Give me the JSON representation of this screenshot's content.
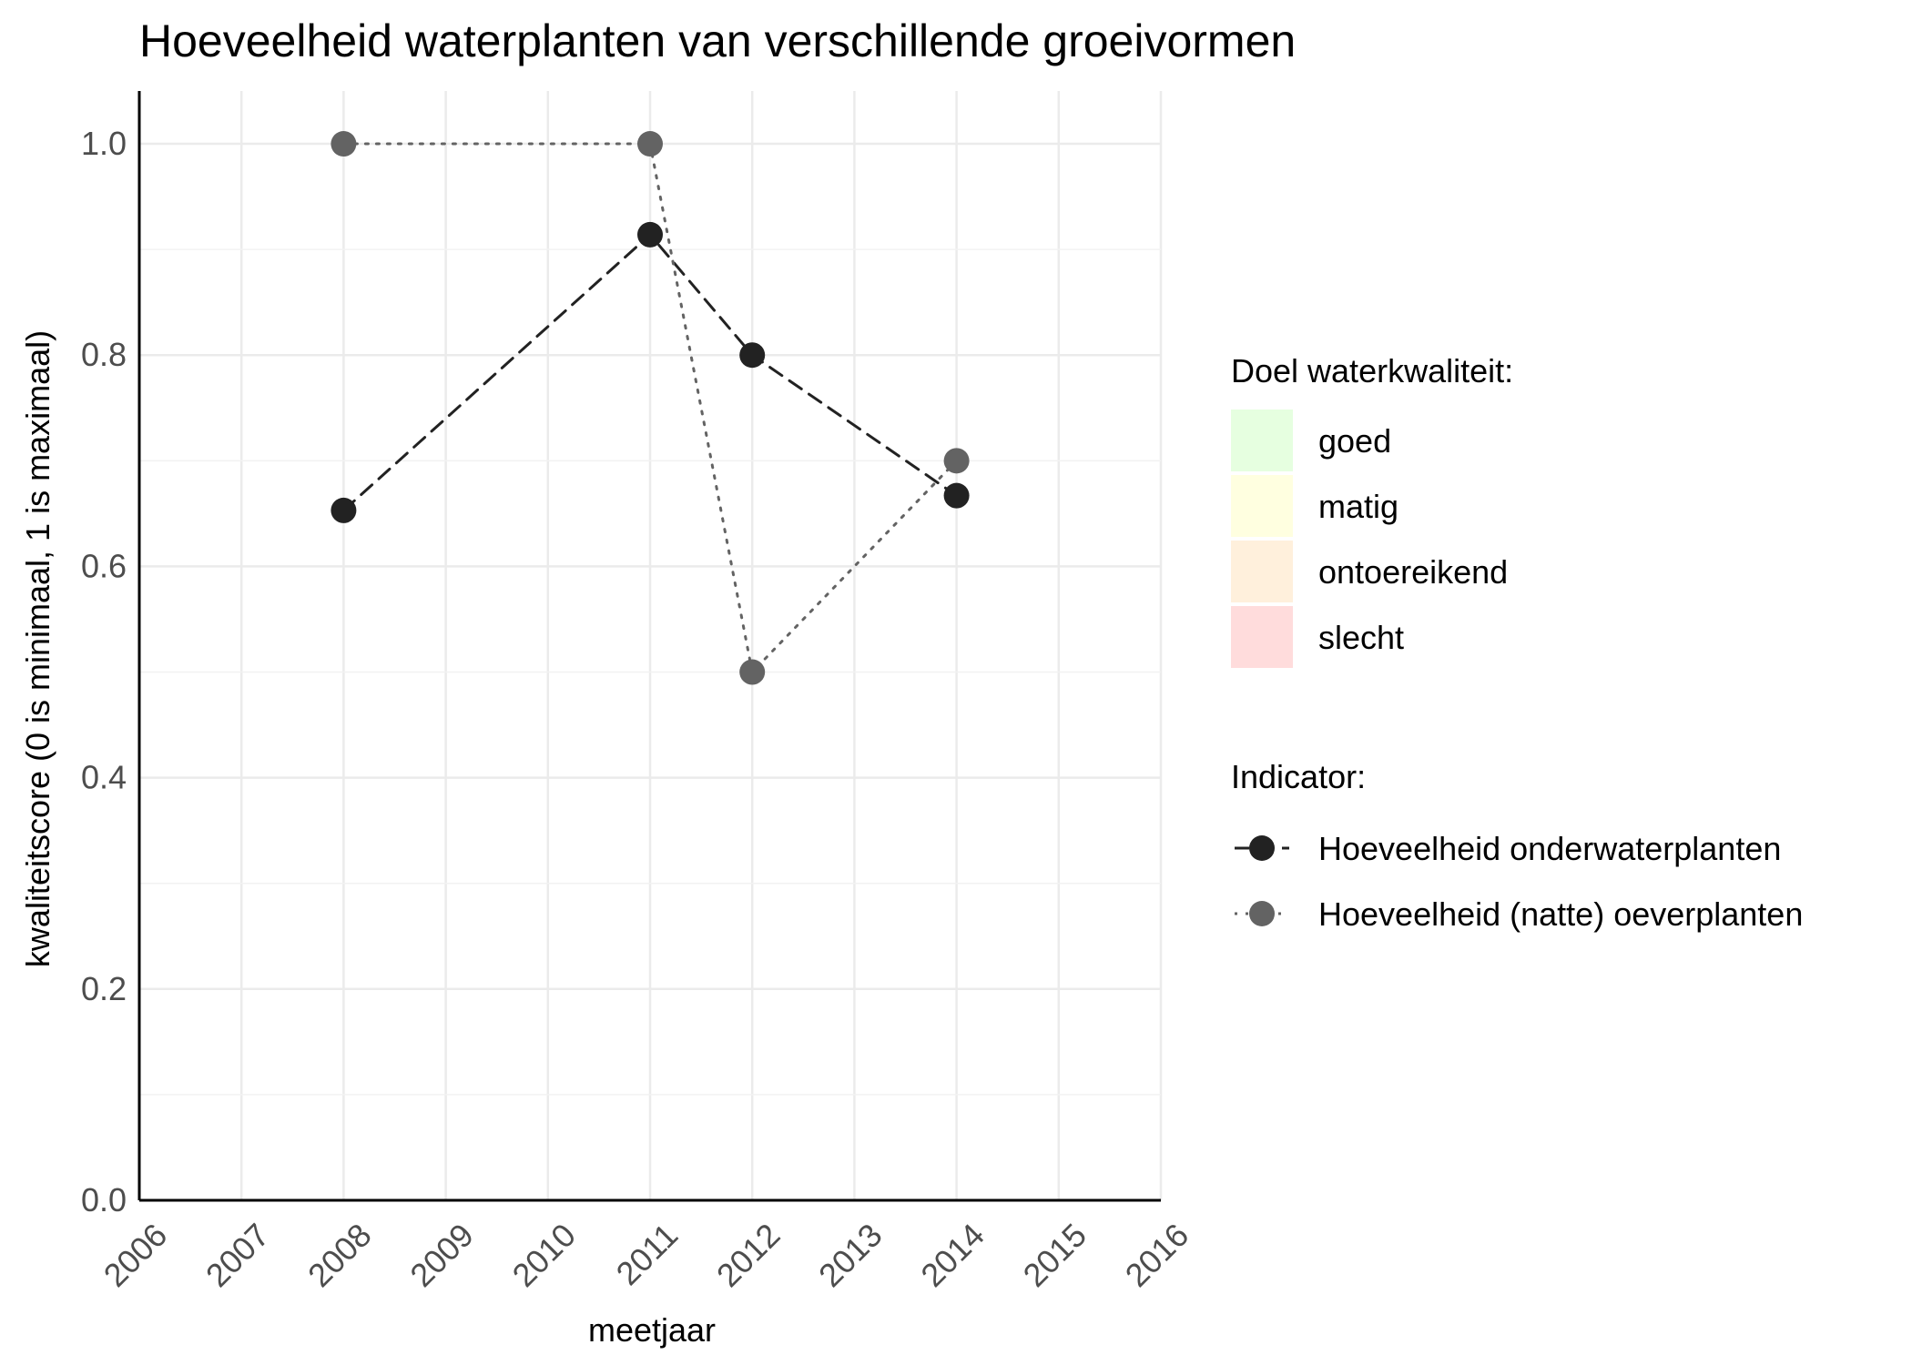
{
  "chart_data": {
    "type": "line",
    "title": "Hoeveelheid waterplanten van verschillende groeivormen",
    "xlabel": "meetjaar",
    "ylabel": "kwaliteitscore (0 is minimaal, 1 is maximaal)",
    "xlim": [
      2006,
      2016
    ],
    "ylim": [
      0,
      1.05
    ],
    "x_ticks": [
      2006,
      2007,
      2008,
      2009,
      2010,
      2011,
      2012,
      2013,
      2014,
      2015,
      2016
    ],
    "y_ticks": [
      0,
      0.2,
      0.4,
      0.6,
      0.8,
      1.0
    ],
    "y_tick_labels": [
      "0.0",
      "0.2",
      "0.4",
      "0.6",
      "0.8",
      "1.0"
    ],
    "grid": true,
    "legend_position": "right",
    "quality_legend": {
      "title": "Doel waterkwaliteit:",
      "items": [
        {
          "label": "goed",
          "color": "#e6ffe0"
        },
        {
          "label": "matig",
          "color": "#ffffe0"
        },
        {
          "label": "ontoereikend",
          "color": "#fff0dc"
        },
        {
          "label": "slecht",
          "color": "#ffdcdc"
        }
      ]
    },
    "indicator_legend_title": "Indicator:",
    "series": [
      {
        "name": "Hoeveelheid onderwaterplanten",
        "color": "#222222",
        "line_style": "dashed",
        "points": [
          {
            "x": 2008,
            "y": 0.653
          },
          {
            "x": 2011,
            "y": 0.914
          },
          {
            "x": 2012,
            "y": 0.8
          },
          {
            "x": 2014,
            "y": 0.667
          }
        ]
      },
      {
        "name": "Hoeveelheid (natte) oeverplanten",
        "color": "#636363",
        "line_style": "dotted",
        "points": [
          {
            "x": 2008,
            "y": 1.0
          },
          {
            "x": 2011,
            "y": 1.0
          },
          {
            "x": 2012,
            "y": 0.5
          },
          {
            "x": 2014,
            "y": 0.7
          }
        ]
      }
    ]
  }
}
